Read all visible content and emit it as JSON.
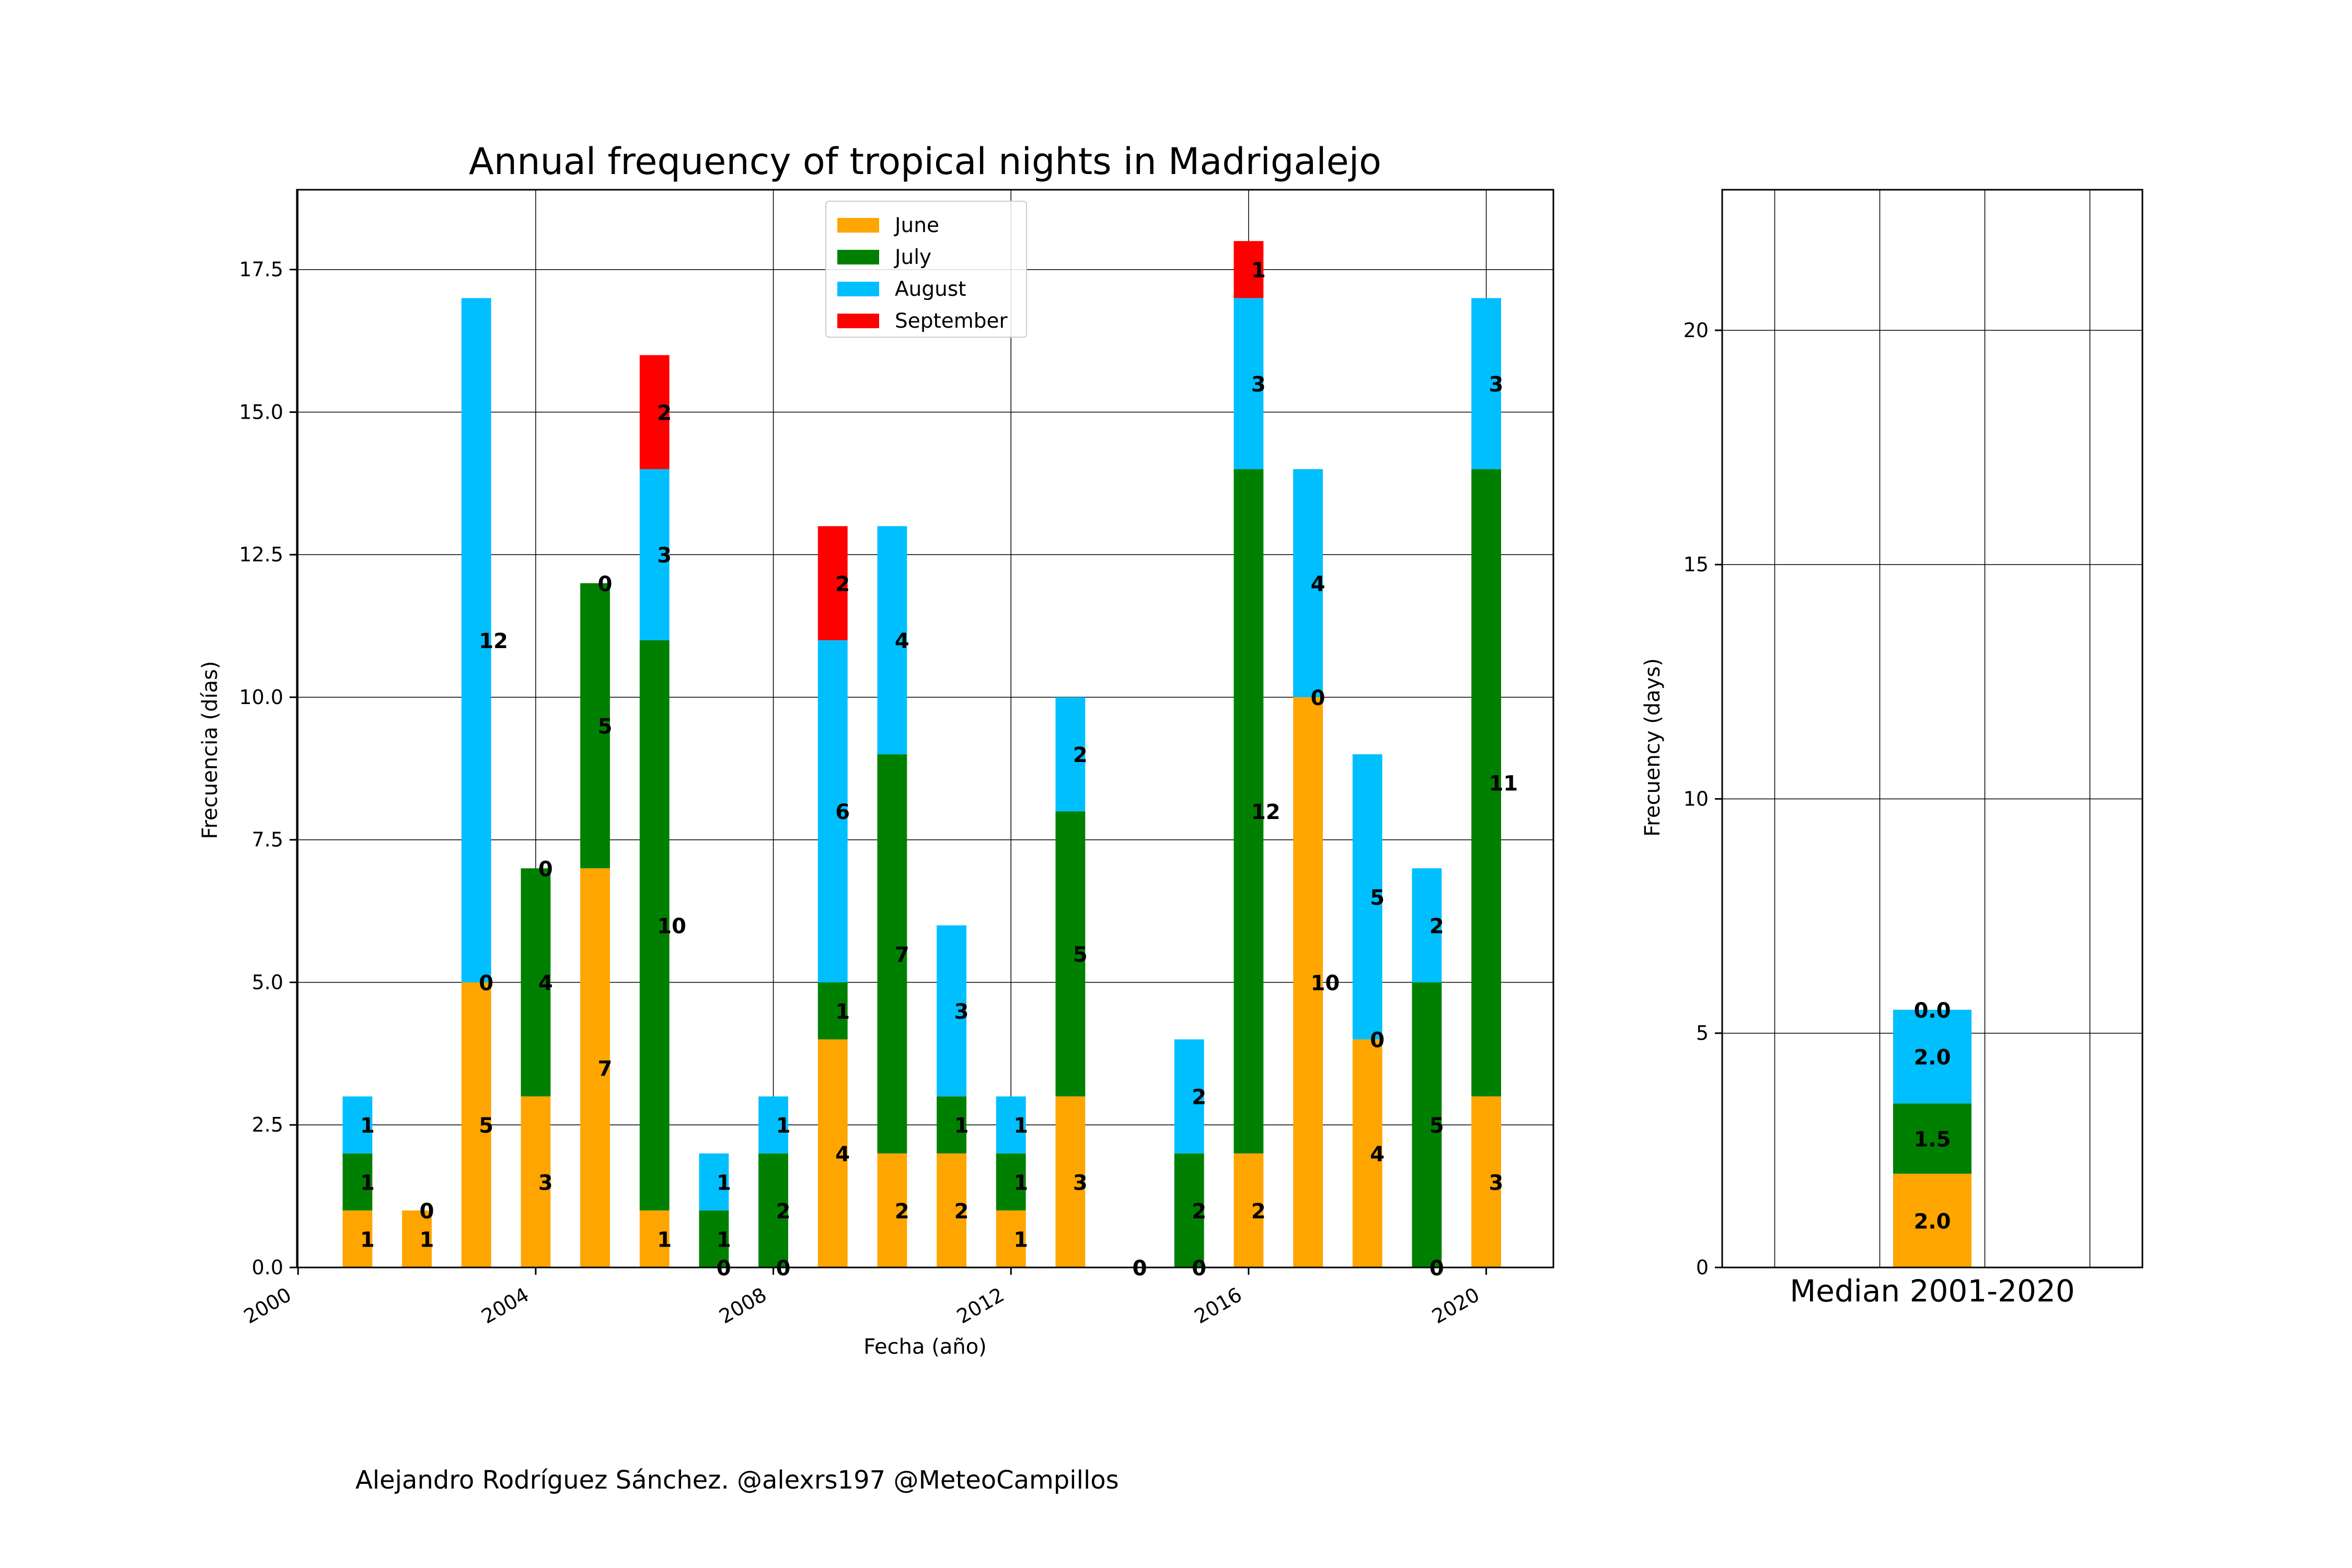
{
  "credit": "Alejandro Rodríguez Sánchez. @alexrs197 @MeteoCampillos",
  "colors": {
    "June": "#FFA500",
    "July": "#008000",
    "August": "#00BFFF",
    "September": "#FF0000"
  },
  "chart_data": [
    {
      "type": "bar",
      "stacked": true,
      "title": "Annual frequency of tropical nights in Madrigalejo",
      "xlabel": "Fecha (año)",
      "ylabel": "Frecuencia (días)",
      "x": [
        2001,
        2002,
        2003,
        2004,
        2005,
        2006,
        2007,
        2008,
        2009,
        2010,
        2011,
        2012,
        2013,
        2014,
        2015,
        2016,
        2017,
        2018,
        2019,
        2020
      ],
      "series": [
        {
          "name": "June",
          "values": [
            1,
            1,
            5,
            3,
            7,
            1,
            0,
            0,
            4,
            2,
            2,
            1,
            3,
            0,
            0,
            2,
            10,
            4,
            0,
            3
          ]
        },
        {
          "name": "July",
          "values": [
            1,
            0,
            0,
            4,
            5,
            10,
            1,
            2,
            1,
            7,
            1,
            1,
            5,
            0,
            2,
            12,
            0,
            0,
            5,
            11
          ]
        },
        {
          "name": "August",
          "values": [
            1,
            0,
            12,
            0,
            0,
            3,
            1,
            1,
            6,
            4,
            3,
            1,
            2,
            0,
            2,
            3,
            4,
            5,
            2,
            3
          ]
        },
        {
          "name": "September",
          "values": [
            0,
            0,
            0,
            0,
            0,
            2,
            0,
            0,
            2,
            0,
            0,
            0,
            0,
            0,
            0,
            1,
            0,
            0,
            0,
            0
          ]
        }
      ],
      "xticks": [
        "2000",
        "2004",
        "2008",
        "2012",
        "2016",
        "2020"
      ],
      "xlim": [
        1999.98,
        2021.13
      ],
      "yticks": [
        "0.0",
        "2.5",
        "5.0",
        "7.5",
        "10.0",
        "12.5",
        "15.0",
        "17.5"
      ],
      "ylim": [
        0,
        18.9
      ],
      "grid": true,
      "legend": "upper center"
    },
    {
      "type": "bar",
      "stacked": true,
      "ylabel": "Frecuency (days)",
      "categories": [
        "Median 2001-2020"
      ],
      "series": [
        {
          "name": "June",
          "values": [
            2.0
          ],
          "labels": [
            "2.0"
          ]
        },
        {
          "name": "July",
          "values": [
            1.5
          ],
          "labels": [
            "1.5"
          ]
        },
        {
          "name": "August",
          "values": [
            2.0
          ],
          "labels": [
            "2.0"
          ]
        },
        {
          "name": "September",
          "values": [
            0.0
          ],
          "labels": [
            "0.0"
          ]
        }
      ],
      "yticks": [
        "0",
        "5",
        "10",
        "15",
        "20"
      ],
      "ylim": [
        0,
        23
      ],
      "grid": true
    }
  ]
}
